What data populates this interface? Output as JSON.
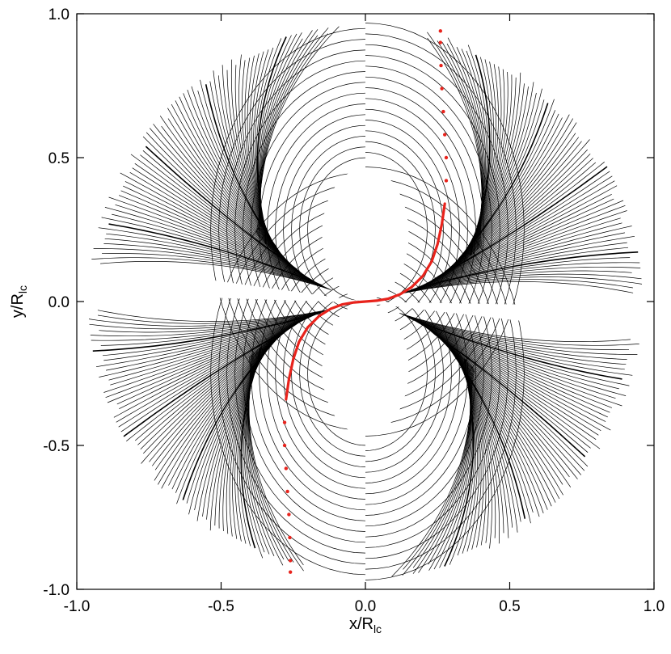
{
  "chart_data": {
    "type": "line",
    "xlabel": {
      "main": "x/R",
      "sub": "lc"
    },
    "ylabel": {
      "main": "y/R",
      "sub": "lc"
    },
    "xlim": [
      -1.0,
      1.0
    ],
    "ylim": [
      -1.0,
      1.0
    ],
    "x_ticks": [
      {
        "value": -1.0,
        "label": "-1.0"
      },
      {
        "value": -0.5,
        "label": "-0.5"
      },
      {
        "value": 0.0,
        "label": "0.0"
      },
      {
        "value": 0.5,
        "label": "0.5"
      },
      {
        "value": 1.0,
        "label": "1.0"
      }
    ],
    "y_ticks": [
      {
        "value": -1.0,
        "label": "-1.0"
      },
      {
        "value": -0.5,
        "label": "-0.5"
      },
      {
        "value": 0.0,
        "label": "0.0"
      },
      {
        "value": 0.5,
        "label": "0.5"
      },
      {
        "value": 1.0,
        "label": "1.0"
      }
    ],
    "grid": false,
    "series": [
      {
        "color": "#000000",
        "description_kind": "field-lines",
        "outer_radius": 0.96,
        "line_count_per_quadrant": 70
      },
      {
        "color": "#e8231c",
        "points": [
          [
            0.0,
            0.0
          ],
          [
            0.04,
            0.003
          ],
          [
            0.08,
            0.01
          ],
          [
            0.12,
            0.025
          ],
          [
            0.16,
            0.05
          ],
          [
            0.2,
            0.09
          ],
          [
            0.23,
            0.14
          ],
          [
            0.25,
            0.2
          ],
          [
            0.265,
            0.27
          ],
          [
            0.275,
            0.34
          ],
          [
            0.28,
            0.42
          ],
          [
            0.28,
            0.5
          ],
          [
            0.275,
            0.58
          ],
          [
            0.27,
            0.66
          ],
          [
            0.265,
            0.74
          ],
          [
            0.262,
            0.82
          ],
          [
            0.26,
            0.9
          ],
          [
            0.26,
            0.94
          ]
        ]
      }
    ]
  }
}
